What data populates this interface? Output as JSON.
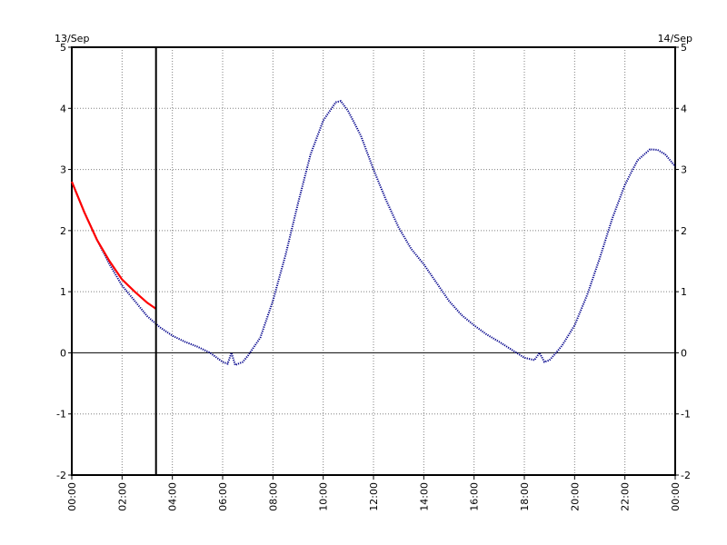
{
  "chart_data": {
    "type": "line",
    "date_left": "13/Sep",
    "date_right": "14/Sep",
    "x_tick_labels": [
      "00:00",
      "02:00",
      "04:00",
      "06:00",
      "08:00",
      "10:00",
      "12:00",
      "14:00",
      "16:00",
      "18:00",
      "20:00",
      "22:00",
      "00:00"
    ],
    "y_tick_labels": [
      "5",
      "4",
      "3",
      "2",
      "1",
      "0",
      "-1",
      "-2"
    ],
    "xlim": [
      0,
      24
    ],
    "ylim": [
      -2,
      5
    ],
    "grid": true,
    "grid_style": "dotted",
    "zero_line": true,
    "current_time_marker_hours": 3.35,
    "series": [
      {
        "color": "#00008b",
        "style": "dotted",
        "x": [
          0.0,
          0.5,
          1.0,
          1.5,
          2.0,
          2.5,
          3.0,
          3.5,
          4.0,
          4.5,
          5.0,
          5.5,
          6.0,
          6.2,
          6.35,
          6.5,
          6.8,
          7.0,
          7.5,
          8.0,
          8.5,
          9.0,
          9.5,
          10.0,
          10.5,
          10.7,
          11.0,
          11.5,
          12.0,
          12.5,
          13.0,
          13.5,
          14.0,
          14.5,
          15.0,
          15.5,
          16.0,
          16.5,
          17.0,
          17.5,
          18.0,
          18.4,
          18.6,
          18.8,
          19.0,
          19.3,
          19.5,
          20.0,
          20.5,
          21.0,
          21.5,
          22.0,
          22.5,
          23.0,
          23.3,
          23.6,
          24.0
        ],
        "y": [
          2.8,
          2.3,
          1.85,
          1.45,
          1.1,
          0.85,
          0.6,
          0.42,
          0.28,
          0.18,
          0.1,
          0.0,
          -0.15,
          -0.18,
          0.0,
          -0.2,
          -0.15,
          -0.05,
          0.25,
          0.85,
          1.6,
          2.45,
          3.25,
          3.8,
          4.1,
          4.12,
          3.95,
          3.55,
          3.0,
          2.5,
          2.05,
          1.7,
          1.45,
          1.15,
          0.85,
          0.62,
          0.45,
          0.3,
          0.18,
          0.05,
          -0.08,
          -0.12,
          0.0,
          -0.15,
          -0.12,
          0.02,
          0.12,
          0.45,
          0.95,
          1.55,
          2.2,
          2.75,
          3.15,
          3.33,
          3.32,
          3.25,
          3.05
        ]
      },
      {
        "color": "#ff0000",
        "style": "solid",
        "x": [
          0.0,
          0.5,
          1.0,
          1.5,
          2.0,
          2.5,
          3.0,
          3.35
        ],
        "y": [
          2.8,
          2.3,
          1.85,
          1.5,
          1.2,
          1.0,
          0.82,
          0.72
        ]
      }
    ]
  }
}
